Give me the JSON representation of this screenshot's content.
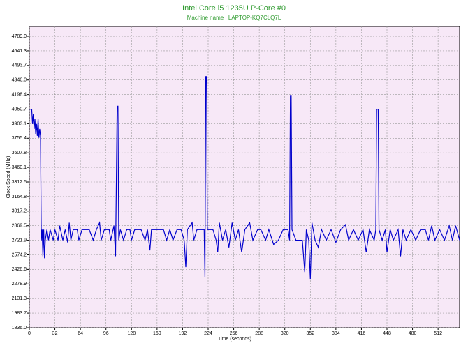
{
  "chart_data": {
    "type": "line",
    "title": "Intel Core i5 1235U P-Core #0",
    "subtitle": "Machine name : LAPTOP-KQ7CLQ7L",
    "x_label": "Time (seconds)",
    "y_label": "Clock Speed (MHz)",
    "xlim": [
      0,
      539
    ],
    "ylim": [
      1836,
      4888
    ],
    "xticks": [
      0,
      32,
      64,
      96,
      128,
      160,
      192,
      224,
      256,
      288,
      320,
      352,
      384,
      416,
      448,
      480,
      512
    ],
    "yticks": [
      {
        "value": 1836,
        "label": "1836.0"
      },
      1983.7,
      2131.3,
      2278.9,
      2426.6,
      2574.2,
      2721.9,
      2869.5,
      3017.2,
      3164.8,
      3312.5,
      3460.1,
      3607.8,
      3755.4,
      3903.1,
      4050.7,
      4198.4,
      {
        "value": 4346,
        "label": "4346.0"
      },
      4493.7,
      4641.3,
      {
        "value": 4789,
        "label": "4789.0"
      }
    ],
    "grid": true,
    "x": [
      0,
      3,
      4,
      5,
      6,
      7,
      8,
      9,
      10,
      11,
      12,
      13,
      14,
      15,
      16,
      17,
      18,
      19,
      20,
      22,
      24,
      26,
      30,
      32,
      36,
      38,
      42,
      45,
      48,
      50,
      52,
      55,
      60,
      62,
      66,
      70,
      75,
      80,
      84,
      88,
      90,
      94,
      100,
      102,
      106,
      108,
      110,
      111,
      112,
      114,
      118,
      122,
      126,
      128,
      132,
      140,
      145,
      148,
      151,
      153,
      160,
      168,
      172,
      176,
      180,
      185,
      190,
      194,
      196,
      198,
      204,
      206,
      210,
      219,
      220,
      221,
      222,
      223,
      230,
      234,
      236,
      238,
      242,
      246,
      250,
      254,
      258,
      262,
      266,
      270,
      276,
      280,
      286,
      290,
      296,
      300,
      306,
      312,
      318,
      324,
      326,
      327,
      328,
      329,
      334,
      342,
      345,
      347,
      350,
      352,
      354,
      358,
      362,
      366,
      372,
      378,
      384,
      390,
      396,
      400,
      406,
      412,
      418,
      422,
      426,
      432,
      434,
      435,
      437,
      438,
      442,
      446,
      448,
      452,
      456,
      462,
      465,
      468,
      472,
      478,
      484,
      490,
      496,
      500,
      504,
      508,
      514,
      520,
      526,
      530,
      534,
      539
    ],
    "series": [
      {
        "name": "P-Core #0",
        "color": "#0000cc",
        "values": [
          4050,
          4050,
          3900,
          4000,
          3850,
          3950,
          3800,
          3900,
          3780,
          3950,
          3760,
          3850,
          3780,
          2722,
          2830,
          2560,
          2830,
          2540,
          2722,
          2830,
          2722,
          2830,
          2722,
          2830,
          2722,
          2870,
          2722,
          2830,
          2700,
          2900,
          2722,
          2830,
          2830,
          2722,
          2830,
          2830,
          2830,
          2722,
          2830,
          2900,
          2722,
          2830,
          2830,
          2722,
          2870,
          2560,
          4080,
          4080,
          2722,
          2830,
          2722,
          2830,
          2830,
          2722,
          2830,
          2830,
          2722,
          2830,
          2620,
          2830,
          2830,
          2830,
          2722,
          2830,
          2722,
          2830,
          2830,
          2722,
          2450,
          2830,
          2900,
          2722,
          2830,
          2830,
          2350,
          4380,
          4380,
          2830,
          2830,
          2722,
          2600,
          2900,
          2722,
          2830,
          2650,
          2900,
          2722,
          2830,
          2600,
          2830,
          2900,
          2722,
          2830,
          2830,
          2722,
          2830,
          2680,
          2722,
          2830,
          2830,
          2722,
          4190,
          4190,
          2830,
          2722,
          2722,
          2400,
          2830,
          2722,
          2330,
          2900,
          2722,
          2650,
          2830,
          2722,
          2830,
          2700,
          2830,
          2880,
          2722,
          2830,
          2722,
          2830,
          2600,
          2830,
          2722,
          2830,
          4050,
          4050,
          2830,
          2722,
          2830,
          2600,
          2830,
          2722,
          2830,
          2560,
          2830,
          2722,
          2830,
          2722,
          2830,
          2830,
          2722,
          2870,
          2722,
          2830,
          2722,
          2870,
          2722,
          2870,
          2722
        ]
      }
    ]
  }
}
